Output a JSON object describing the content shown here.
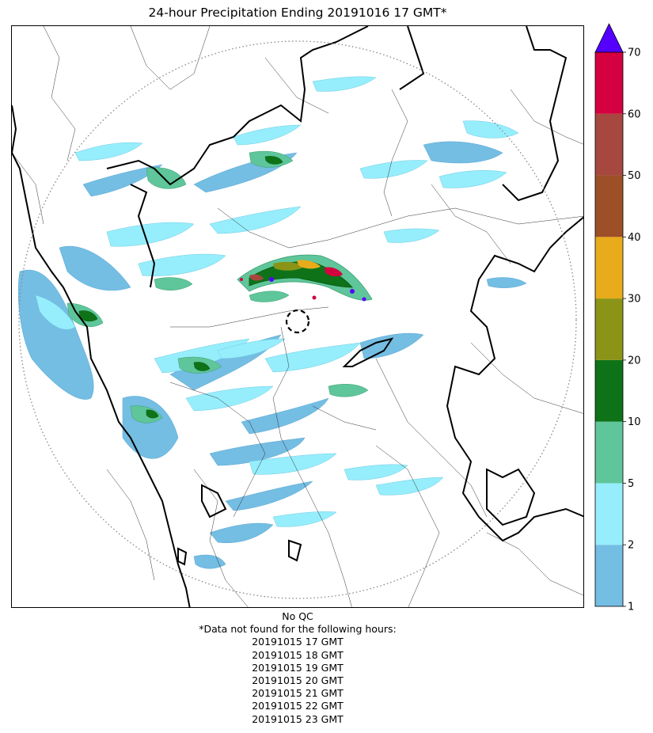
{
  "title": "24-hour Precipitation Ending 20191016 17 GMT*",
  "colorbar": {
    "ticks": [
      "1",
      "2",
      "5",
      "10",
      "20",
      "30",
      "40",
      "50",
      "60",
      "70"
    ],
    "colors": [
      "#74bde3",
      "#96eefc",
      "#5ec69a",
      "#0e7318",
      "#8b9417",
      "#e8ab1b",
      "#9d4f27",
      "#a64840",
      "#d5003f"
    ],
    "overflow_color": "#5500ff",
    "extend": "max"
  },
  "map": {
    "radar_range_ring": "dotted",
    "radar_site_marker": "dashed-circle",
    "boundary_colors": {
      "international": "#000000",
      "state": "#000000",
      "district": "#333333"
    }
  },
  "footer": {
    "qc_note": "No QC",
    "missing_header": "*Data not found for the following hours:",
    "missing_hours": [
      "20191015 17 GMT",
      "20191015 18 GMT",
      "20191015 19 GMT",
      "20191015 20 GMT",
      "20191015 21 GMT",
      "20191015 22 GMT",
      "20191015 23 GMT"
    ]
  }
}
